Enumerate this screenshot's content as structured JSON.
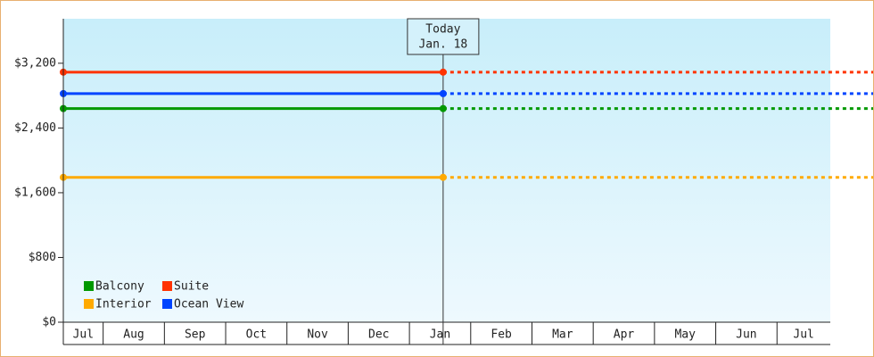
{
  "chart_data": {
    "type": "line",
    "categories": [
      "Jul",
      "Aug",
      "Sep",
      "Oct",
      "Nov",
      "Dec",
      "Jan",
      "Feb",
      "Mar",
      "Apr",
      "May",
      "Jun",
      "Jul"
    ],
    "xlim": [
      0.35,
      12.87
    ],
    "ylim": [
      0,
      3750
    ],
    "yticks": [
      {
        "value": 0,
        "label": "$0"
      },
      {
        "value": 800,
        "label": "$800"
      },
      {
        "value": 1600,
        "label": "$1,600"
      },
      {
        "value": 2400,
        "label": "$2,400"
      },
      {
        "value": 3200,
        "label": "$3,200"
      }
    ],
    "x": [
      0.35,
      6.55
    ],
    "series": [
      {
        "name": "Balcony",
        "color": "#009900",
        "values": [
          2640,
          2640
        ]
      },
      {
        "name": "Suite",
        "color": "#ff3300",
        "values": [
          3090,
          3090
        ]
      },
      {
        "name": "Interior",
        "color": "#ffaa00",
        "values": [
          1790,
          1790
        ]
      },
      {
        "name": "Ocean View",
        "color": "#0044ff",
        "values": [
          2825,
          2825
        ]
      }
    ],
    "today": {
      "x": 6.55,
      "label": [
        "Today",
        "Jan. 18"
      ]
    }
  }
}
